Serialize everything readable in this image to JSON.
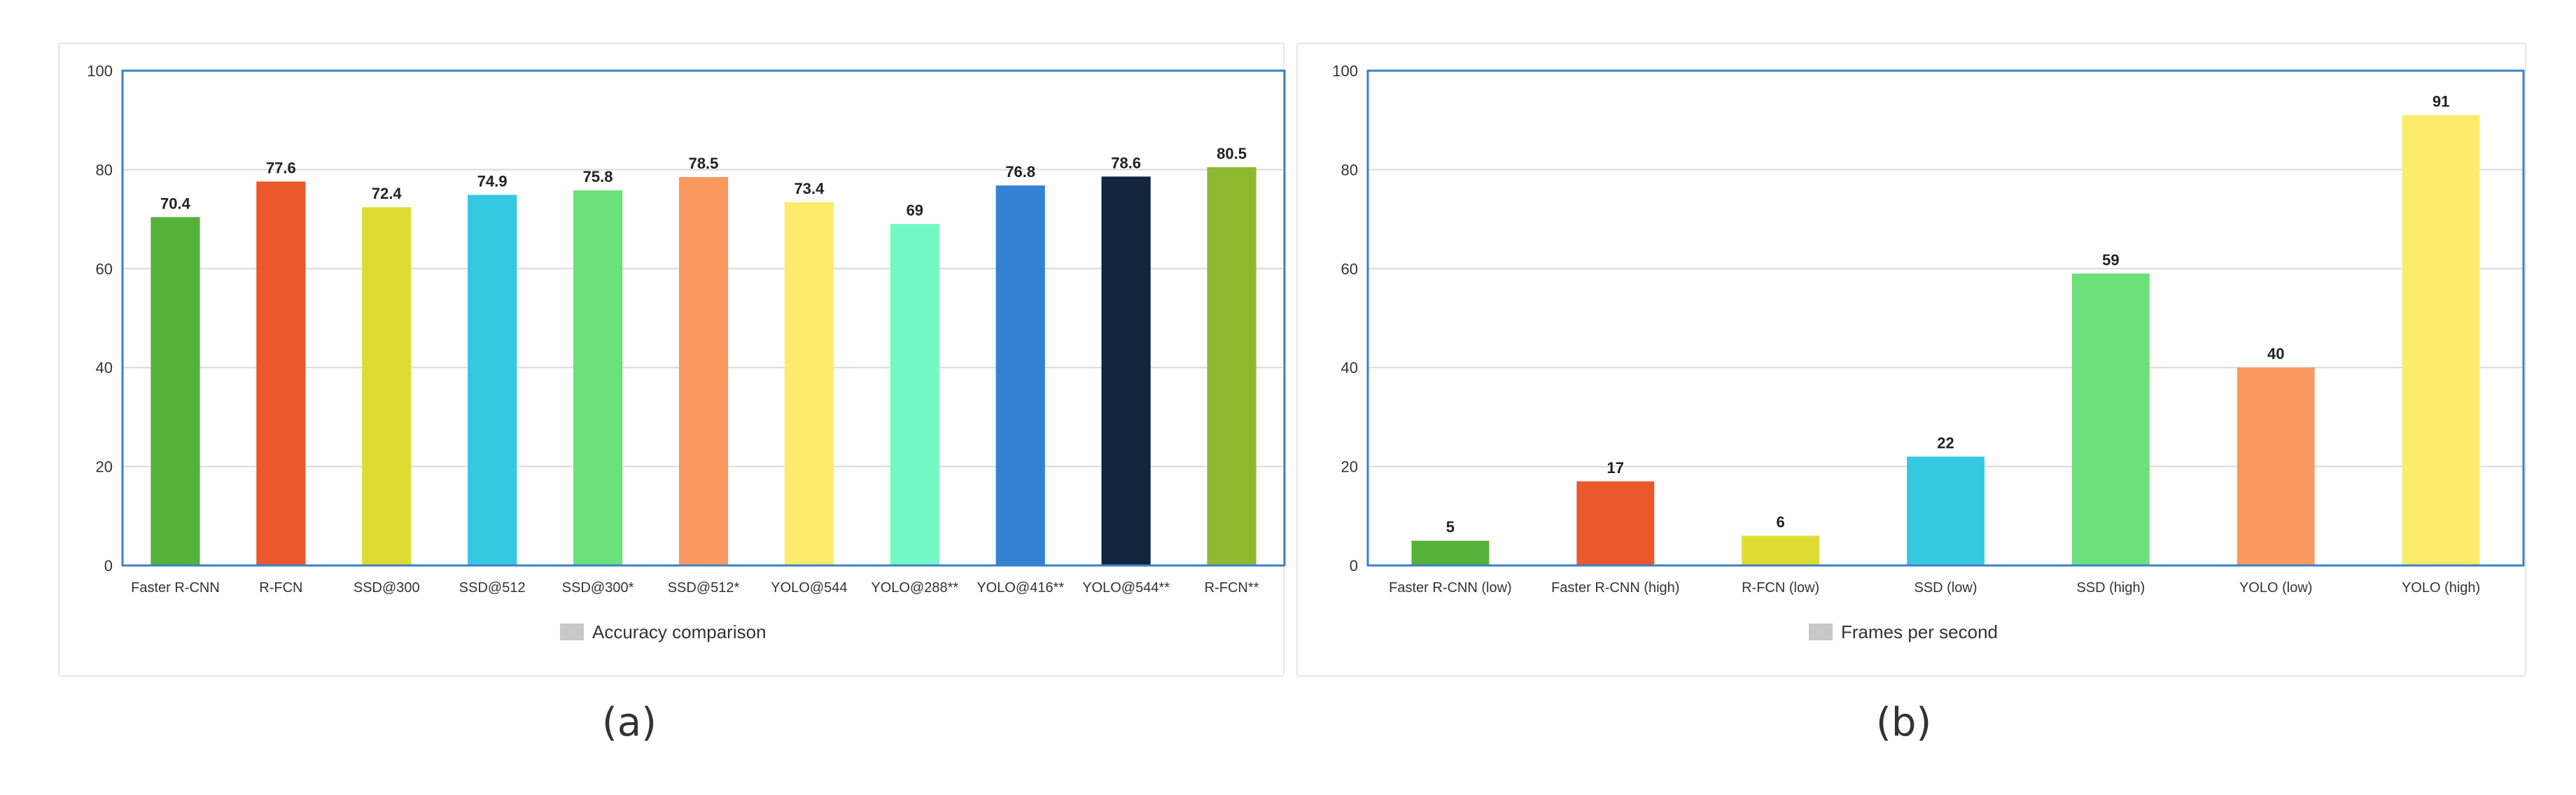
{
  "captions": {
    "a": "(a)",
    "b": "(b)"
  },
  "chart_data": [
    {
      "type": "bar",
      "categories": [
        "Faster R-CNN",
        "R-FCN",
        "SSD@300",
        "SSD@512",
        "SSD@300*",
        "SSD@512*",
        "YOLO@544",
        "YOLO@288**",
        "YOLO@416**",
        "YOLO@544**",
        "R-FCN**"
      ],
      "values": [
        70.4,
        77.6,
        72.4,
        74.9,
        75.8,
        78.5,
        73.4,
        69,
        76.8,
        78.6,
        80.5
      ],
      "value_labels": [
        "70.4",
        "77.6",
        "72.4",
        "74.9",
        "75.8",
        "78.5",
        "73.4",
        "69",
        "76.8",
        "78.6",
        "80.5"
      ],
      "colors": [
        "#55b13a",
        "#ea582b",
        "#dedc31",
        "#35c8e3",
        "#6ce07a",
        "#fa985f",
        "#fdec6b",
        "#72f9c4",
        "#3480d5",
        "#11263c",
        "#8db830"
      ],
      "legend": {
        "label": "Accuracy comparison",
        "color": "#c8c8c8",
        "placement": "bottom"
      },
      "ylim": [
        0,
        100
      ],
      "yticks": [
        0,
        20,
        40,
        60,
        80,
        100
      ],
      "ytick_labels": [
        "0",
        "20",
        "40",
        "60",
        "80",
        "100"
      ],
      "grid": true
    },
    {
      "type": "bar",
      "categories": [
        "Faster R-CNN (low)",
        "Faster R-CNN (high)",
        "R-FCN (low)",
        "SSD (low)",
        "SSD (high)",
        "YOLO (low)",
        "YOLO (high)"
      ],
      "values": [
        5,
        17,
        6,
        22,
        59,
        40,
        91
      ],
      "value_labels": [
        "5",
        "17",
        "6",
        "22",
        "59",
        "40",
        "91"
      ],
      "colors": [
        "#55b13a",
        "#ea582b",
        "#dedc31",
        "#35c8e3",
        "#6ce07a",
        "#fa985f",
        "#fdec6b"
      ],
      "legend": {
        "label": "Frames per second",
        "color": "#c8c8c8",
        "placement": "bottom"
      },
      "ylim": [
        0,
        100
      ],
      "yticks": [
        0,
        20,
        40,
        60,
        80,
        100
      ],
      "ytick_labels": [
        "0",
        "20",
        "40",
        "60",
        "80",
        "100"
      ],
      "grid": true
    }
  ]
}
